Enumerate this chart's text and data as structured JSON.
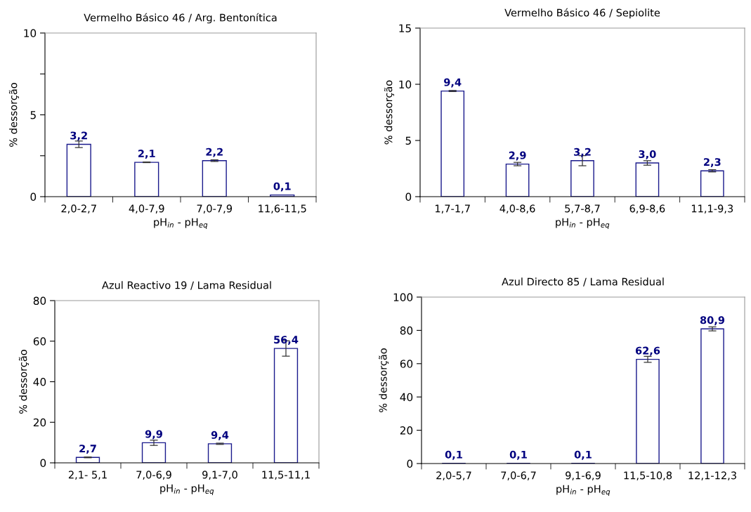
{
  "chart_data": [
    {
      "type": "bar",
      "title": "Vermelho Básico 46 / Arg. Bentonítica",
      "xlabel": "pH$_{in}$ - pH$_{eq}$",
      "ylabel": "% dessorção",
      "categories": [
        "2,0-2,7",
        "4,0-7,9",
        "7,0-7,9",
        "11,6-11,5"
      ],
      "values": [
        3.2,
        2.1,
        2.2,
        0.1
      ],
      "errors": [
        0.2,
        0.02,
        0.05,
        null
      ],
      "value_labels": [
        "3,2",
        "2,1",
        "2,2",
        "0,1"
      ],
      "color": "#ffffff",
      "ylim": [
        0,
        10
      ],
      "yticks": [
        0,
        {
          "value": 2.5,
          "label": null
        },
        5,
        {
          "value": 7.5,
          "label": null
        },
        10
      ],
      "grid": false,
      "legend": false
    },
    {
      "type": "bar",
      "title": "Vermelho Básico 46 / Sepiolite",
      "xlabel": "pH$_{in}$ - pH$_{eq}$",
      "ylabel": "% dessorção",
      "categories": [
        "1,7-1,7",
        "4,0-8,6",
        "5,7-8,7",
        "6,9-8,6",
        "11,1-9,3"
      ],
      "values": [
        9.4,
        2.9,
        3.2,
        3.0,
        2.3
      ],
      "errors": [
        0.05,
        0.15,
        0.45,
        0.2,
        0.1
      ],
      "value_labels": [
        "9,4",
        "2,9",
        "3,2",
        "3,0",
        "2,3"
      ],
      "color": "#ffffff",
      "ylim": [
        0,
        15
      ],
      "yticks": [
        0,
        5,
        10,
        15
      ],
      "grid": false,
      "legend": false
    },
    {
      "type": "bar",
      "title": "Azul Reactivo 19 / Lama Residual",
      "xlabel": "pH$_{in}$ - pH$_{eq}$",
      "ylabel": "% dessorção",
      "categories": [
        "2,1- 5,1",
        "7,0-6,9",
        "9,1-7,0",
        "11,5-11,1"
      ],
      "values": [
        2.7,
        9.9,
        9.4,
        56.4
      ],
      "errors": [
        0.2,
        1.3,
        0.3,
        3.8
      ],
      "value_labels": [
        "2,7",
        "9,9",
        "9,4",
        "56,4"
      ],
      "color": "#ffffff",
      "ylim": [
        0,
        80
      ],
      "yticks": [
        0,
        20,
        40,
        60,
        80
      ],
      "grid": false,
      "legend": false
    },
    {
      "type": "bar",
      "title": "Azul Directo 85 / Lama Residual",
      "xlabel": "pH$_{in}$ - pH$_{eq}$",
      "ylabel": "% dessorção",
      "categories": [
        "2,0-5,7",
        "7,0-6,7",
        "9,1-6,9",
        "11,5-10,8",
        "12,1-12,3"
      ],
      "values": [
        0.1,
        0.1,
        0.1,
        62.6,
        80.9
      ],
      "errors": [
        null,
        null,
        null,
        1.8,
        1.2
      ],
      "value_labels": [
        "0,1",
        "0,1",
        "0,1",
        "62,6",
        "80,9"
      ],
      "color": "#ffffff",
      "ylim": [
        0,
        100
      ],
      "yticks": [
        0,
        20,
        40,
        60,
        80,
        100
      ],
      "grid": false,
      "legend": false
    }
  ]
}
